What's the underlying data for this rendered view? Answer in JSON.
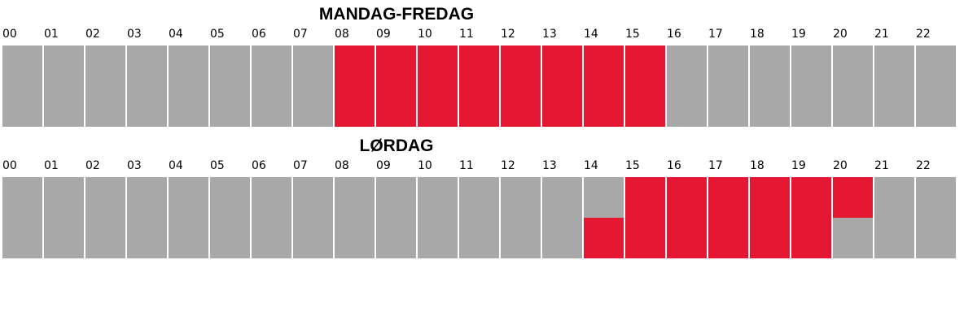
{
  "colors": {
    "open": "#e51632",
    "closed": "#a8a8a8"
  },
  "chart_data": [
    {
      "type": "heatmap",
      "title": "MANDAG-FREDAG",
      "tick_labels": [
        "00",
        "01",
        "02",
        "03",
        "04",
        "05",
        "06",
        "07",
        "08",
        "09",
        "10",
        "11",
        "12",
        "13",
        "14",
        "15",
        "16",
        "17",
        "18",
        "19",
        "20",
        "21",
        "22"
      ],
      "open_blocks": [
        {
          "from": 8,
          "to": 16
        }
      ],
      "grid": false,
      "legend": "none"
    },
    {
      "type": "heatmap",
      "title": "LØRDAG",
      "tick_labels": [
        "00",
        "01",
        "02",
        "03",
        "04",
        "05",
        "06",
        "07",
        "08",
        "09",
        "10",
        "11",
        "12",
        "13",
        "14",
        "15",
        "16",
        "17",
        "18",
        "19",
        "20",
        "21",
        "22"
      ],
      "open_blocks": [
        {
          "from": 14.5,
          "to": 20.5
        }
      ],
      "grid": false,
      "legend": "none"
    }
  ]
}
